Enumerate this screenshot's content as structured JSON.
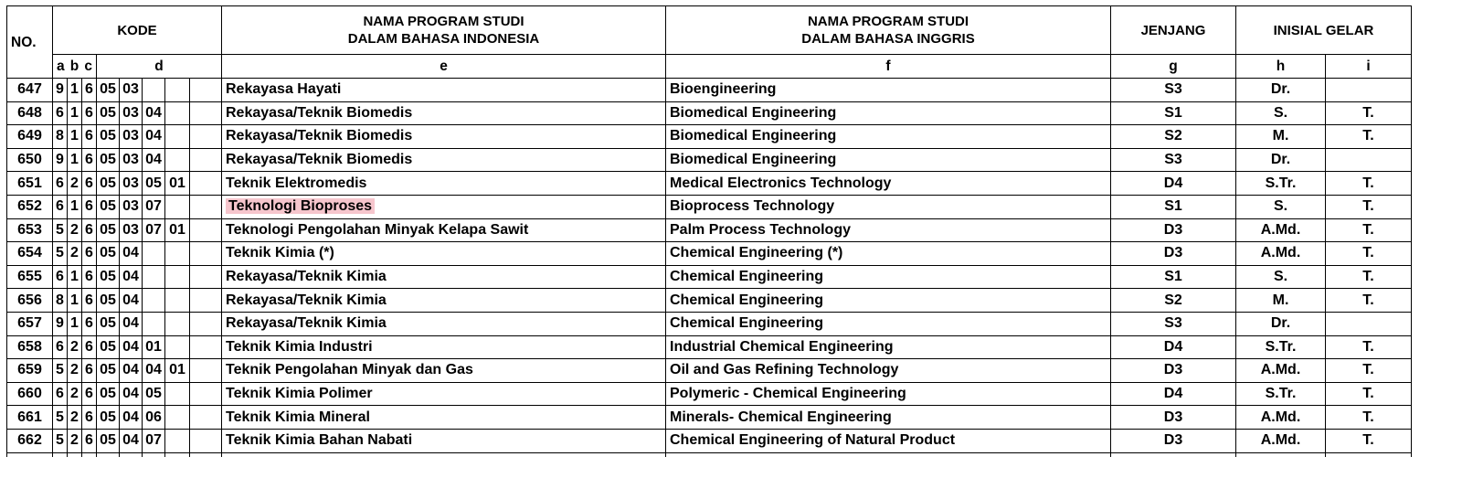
{
  "header": {
    "no": "NO.",
    "kode": "KODE",
    "nama_id_line1": "NAMA PROGRAM STUDI",
    "nama_id_line2": "DALAM BAHASA INDONESIA",
    "nama_en_line1": "NAMA PROGRAM STUDI",
    "nama_en_line2": "DALAM BAHASA INGGRIS",
    "jenjang": "JENJANG",
    "inisial_gelar": "INISIAL GELAR"
  },
  "subheader": {
    "a": "a",
    "b": "b",
    "c": "c",
    "d": "d",
    "e": "e",
    "f": "f",
    "g": "g",
    "h": "h",
    "i": "i"
  },
  "rows": [
    {
      "no": "647",
      "a": "9",
      "b": "1",
      "c": "6",
      "d1": "05",
      "d2": "03",
      "d3": "",
      "d4": "",
      "e": "Rekayasa Hayati",
      "f": "Bioengineering",
      "g": "S3",
      "h": "Dr.",
      "i": ""
    },
    {
      "no": "648",
      "a": "6",
      "b": "1",
      "c": "6",
      "d1": "05",
      "d2": "03",
      "d3": "04",
      "d4": "",
      "e": "Rekayasa/Teknik Biomedis",
      "f": "Biomedical Engineering",
      "g": "S1",
      "h": "S.",
      "i": "T."
    },
    {
      "no": "649",
      "a": "8",
      "b": "1",
      "c": "6",
      "d1": "05",
      "d2": "03",
      "d3": "04",
      "d4": "",
      "e": "Rekayasa/Teknik Biomedis",
      "f": "Biomedical Engineering",
      "g": "S2",
      "h": "M.",
      "i": "T."
    },
    {
      "no": "650",
      "a": "9",
      "b": "1",
      "c": "6",
      "d1": "05",
      "d2": "03",
      "d3": "04",
      "d4": "",
      "e": "Rekayasa/Teknik Biomedis",
      "f": "Biomedical Engineering",
      "g": "S3",
      "h": "Dr.",
      "i": ""
    },
    {
      "no": "651",
      "a": "6",
      "b": "2",
      "c": "6",
      "d1": "05",
      "d2": "03",
      "d3": "05",
      "d4": "01",
      "e": "Teknik Elektromedis",
      "f": "Medical Electronics Technology",
      "g": "D4",
      "h": "S.Tr.",
      "i": "T."
    },
    {
      "no": "652",
      "a": "6",
      "b": "1",
      "c": "6",
      "d1": "05",
      "d2": "03",
      "d3": "07",
      "d4": "",
      "e": "Teknologi Bioproses",
      "f": "Bioprocess Technology",
      "g": "S1",
      "h": "S.",
      "i": "T.",
      "highlight": true
    },
    {
      "no": "653",
      "a": "5",
      "b": "2",
      "c": "6",
      "d1": "05",
      "d2": "03",
      "d3": "07",
      "d4": "01",
      "e": "Teknologi Pengolahan Minyak  Kelapa Sawit",
      "f": "Palm Process Technology",
      "g": "D3",
      "h": "A.Md.",
      "i": "T."
    },
    {
      "no": "654",
      "a": "5",
      "b": "2",
      "c": "6",
      "d1": "05",
      "d2": "04",
      "d3": "",
      "d4": "",
      "e": "Teknik  Kimia (*)",
      "f": "Chemical Engineering (*)",
      "g": "D3",
      "h": "A.Md.",
      "i": "T."
    },
    {
      "no": "655",
      "a": "6",
      "b": "1",
      "c": "6",
      "d1": "05",
      "d2": "04",
      "d3": "",
      "d4": "",
      "e": "Rekayasa/Teknik Kimia",
      "f": "Chemical Engineering",
      "g": "S1",
      "h": "S.",
      "i": "T."
    },
    {
      "no": "656",
      "a": "8",
      "b": "1",
      "c": "6",
      "d1": "05",
      "d2": "04",
      "d3": "",
      "d4": "",
      "e": "Rekayasa/Teknik Kimia",
      "f": "Chemical Engineering",
      "g": "S2",
      "h": "M.",
      "i": "T."
    },
    {
      "no": "657",
      "a": "9",
      "b": "1",
      "c": "6",
      "d1": "05",
      "d2": "04",
      "d3": "",
      "d4": "",
      "e": "Rekayasa/Teknik Kimia",
      "f": "Chemical Engineering",
      "g": "S3",
      "h": "Dr.",
      "i": ""
    },
    {
      "no": "658",
      "a": "6",
      "b": "2",
      "c": "6",
      "d1": "05",
      "d2": "04",
      "d3": "01",
      "d4": "",
      "e": "Teknik Kimia Industri",
      "f": "Industrial Chemical Engineering",
      "g": "D4",
      "h": "S.Tr.",
      "i": "T."
    },
    {
      "no": "659",
      "a": "5",
      "b": "2",
      "c": "6",
      "d1": "05",
      "d2": "04",
      "d3": "04",
      "d4": "01",
      "e": "Teknik Pengolahan Minyak dan Gas",
      "f": "Oil and Gas Refining Technology",
      "g": "D3",
      "h": "A.Md.",
      "i": "T."
    },
    {
      "no": "660",
      "a": "6",
      "b": "2",
      "c": "6",
      "d1": "05",
      "d2": "04",
      "d3": "05",
      "d4": "",
      "e": "Teknik Kimia Polimer",
      "f": "Polymeric - Chemical Engineering",
      "g": "D4",
      "h": "S.Tr.",
      "i": "T."
    },
    {
      "no": "661",
      "a": "5",
      "b": "2",
      "c": "6",
      "d1": "05",
      "d2": "04",
      "d3": "06",
      "d4": "",
      "e": "Teknik Kimia Mineral",
      "f": "Minerals- Chemical Engineering",
      "g": "D3",
      "h": "A.Md.",
      "i": "T."
    },
    {
      "no": "662",
      "a": "5",
      "b": "2",
      "c": "6",
      "d1": "05",
      "d2": "04",
      "d3": "07",
      "d4": "",
      "e": "Teknik Kimia Bahan Nabati",
      "f": "Chemical Engineering of Natural Product",
      "g": "D3",
      "h": "A.Md.",
      "i": "T."
    }
  ],
  "colors": {
    "highlight": "#f6c6cd",
    "border": "#000000",
    "text": "#000000"
  }
}
